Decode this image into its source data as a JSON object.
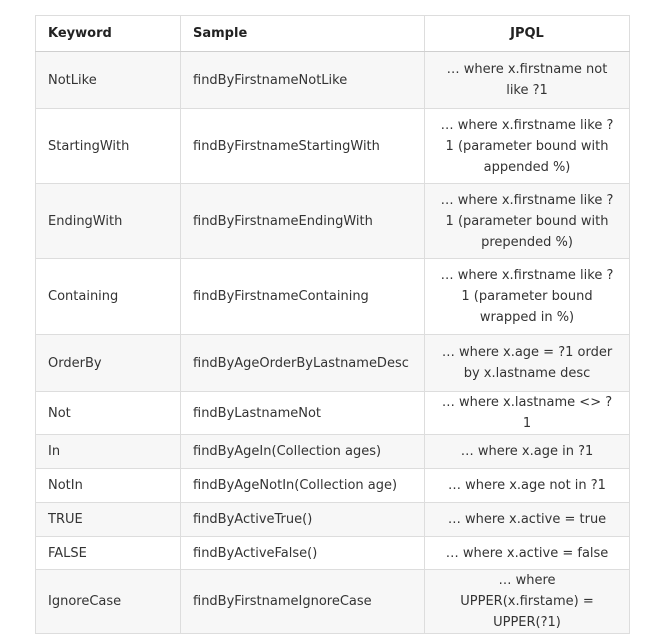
{
  "table": {
    "headers": [
      "Keyword",
      "Sample",
      "JPQL"
    ],
    "rows": [
      {
        "keyword": "NotLike",
        "sample": "findByFirstnameNotLike",
        "jpql": "… where x.firstname not like ?1"
      },
      {
        "keyword": "StartingWith",
        "sample": "findByFirstnameStartingWith",
        "jpql": "… where x.firstname like ?1 (parameter bound with appended %)"
      },
      {
        "keyword": "EndingWith",
        "sample": "findByFirstnameEndingWith",
        "jpql": "… where x.firstname like ?1 (parameter bound with prepended %)"
      },
      {
        "keyword": "Containing",
        "sample": "findByFirstnameContaining",
        "jpql": "… where x.firstname like ?1 (parameter bound wrapped in %)"
      },
      {
        "keyword": "OrderBy",
        "sample": "findByAgeOrderByLastnameDesc",
        "jpql": "… where x.age = ?1 order by x.lastname desc"
      },
      {
        "keyword": "Not",
        "sample": "findByLastnameNot",
        "jpql": "… where x.lastname <> ?1"
      },
      {
        "keyword": "In",
        "sample": "findByAgeIn(Collection ages)",
        "jpql": "… where x.age in ?1"
      },
      {
        "keyword": "NotIn",
        "sample": "findByAgeNotIn(Collection age)",
        "jpql": "… where x.age not in ?1"
      },
      {
        "keyword": "TRUE",
        "sample": "findByActiveTrue()",
        "jpql": "… where x.active = true"
      },
      {
        "keyword": "FALSE",
        "sample": "findByActiveFalse()",
        "jpql": "… where x.active = false"
      },
      {
        "keyword": "IgnoreCase",
        "sample": "findByFirstnameIgnoreCase",
        "jpql": "… where UPPER(x.firstame) = UPPER(?1)"
      }
    ]
  }
}
